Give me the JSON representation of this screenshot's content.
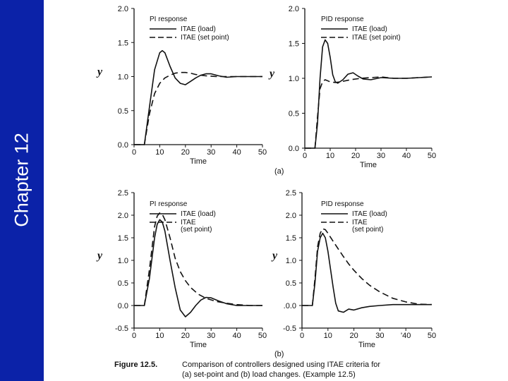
{
  "slide": {
    "chapter_title": "Chapter 12",
    "sidebar_color": "#0b22a8",
    "panel_a_label": "(a)",
    "panel_b_label": "(b)",
    "caption_figure": "Figure 12.5.",
    "caption_line1": "Comparison of controllers designed using ITAE criteria for",
    "caption_line2": "(a) set-point and (b) load changes. (Example 12.5)"
  },
  "chart_data": [
    {
      "type": "line",
      "title": "PI response",
      "xlabel": "Time",
      "ylabel": "y",
      "xlim": [
        0,
        50
      ],
      "ylim": [
        0,
        2.0
      ],
      "xticks": [
        0,
        10,
        20,
        30,
        40,
        50
      ],
      "yticks": [
        0.0,
        0.5,
        1.0,
        1.5,
        2.0
      ],
      "ytick_labels": [
        "0.0",
        "0.5",
        "1.0",
        "1.5",
        "2.0"
      ],
      "series": [
        {
          "name": "ITAE (load)",
          "style": "solid",
          "x": [
            0,
            4,
            6,
            8,
            10,
            11,
            12,
            14,
            16,
            18,
            20,
            22,
            24,
            26,
            28,
            30,
            33,
            36,
            40,
            45,
            50
          ],
          "y": [
            0,
            0,
            0.55,
            1.1,
            1.35,
            1.38,
            1.35,
            1.15,
            0.98,
            0.9,
            0.88,
            0.93,
            0.98,
            1.02,
            1.04,
            1.04,
            1.01,
            0.99,
            1.0,
            1.0,
            1.0
          ]
        },
        {
          "name": "ITAE (set point)",
          "style": "dashed",
          "x": [
            0,
            4,
            6,
            8,
            10,
            12,
            14,
            16,
            18,
            20,
            22,
            24,
            28,
            32,
            36,
            40,
            45,
            50
          ],
          "y": [
            0,
            0,
            0.45,
            0.75,
            0.9,
            0.98,
            1.02,
            1.05,
            1.06,
            1.06,
            1.05,
            1.03,
            1.01,
            1.0,
            1.0,
            1.0,
            1.0,
            1.0
          ]
        }
      ]
    },
    {
      "type": "line",
      "title": "PID response",
      "xlabel": "Time",
      "ylabel": "y",
      "xlim": [
        0,
        50
      ],
      "ylim": [
        0,
        2.0
      ],
      "xticks": [
        0,
        10,
        20,
        30,
        40,
        50
      ],
      "yticks": [
        0.0,
        0.5,
        1.0,
        1.5,
        2.0
      ],
      "ytick_labels": [
        "0.0",
        "0.5",
        "1.0",
        "1.5",
        "2.0"
      ],
      "series": [
        {
          "name": "ITAE (load)",
          "style": "solid",
          "x": [
            0,
            4,
            5,
            6,
            7,
            8,
            9,
            10,
            11,
            12,
            13,
            15,
            17,
            19,
            21,
            23,
            26,
            30,
            35,
            40,
            50
          ],
          "y": [
            0,
            0,
            0.35,
            1.0,
            1.45,
            1.55,
            1.5,
            1.3,
            1.05,
            0.95,
            0.93,
            0.98,
            1.06,
            1.08,
            1.03,
            0.99,
            0.98,
            1.01,
            1.0,
            1.0,
            1.02
          ]
        },
        {
          "name": "ITAE (set point)",
          "style": "dashed",
          "x": [
            0,
            4,
            5,
            6,
            7,
            8,
            10,
            12,
            14,
            18,
            22,
            26,
            30,
            35,
            40,
            50
          ],
          "y": [
            0,
            0,
            0.45,
            0.85,
            0.95,
            0.98,
            0.95,
            0.94,
            0.95,
            0.98,
            1.0,
            1.01,
            1.02,
            1.0,
            1.0,
            1.02
          ]
        }
      ]
    },
    {
      "type": "line",
      "title": "PI response",
      "xlabel": "Time",
      "ylabel": "y",
      "xlim": [
        0,
        50
      ],
      "ylim": [
        -0.5,
        2.5
      ],
      "xticks": [
        0,
        10,
        20,
        30,
        40,
        50
      ],
      "yticks": [
        -0.5,
        0.0,
        0.5,
        1.0,
        1.5,
        2.0,
        2.5
      ],
      "ytick_labels": [
        "-0.5",
        "0.0",
        "0.5",
        "1.0",
        "1.5",
        "2.0",
        "2.5"
      ],
      "series": [
        {
          "name": "ITAE (load)",
          "style": "solid",
          "x": [
            0,
            4,
            6,
            8,
            9,
            10,
            11,
            12,
            14,
            16,
            18,
            20,
            22,
            24,
            26,
            28,
            30,
            33,
            36,
            40,
            45,
            50
          ],
          "y": [
            0,
            0,
            0.6,
            1.5,
            1.8,
            1.9,
            1.85,
            1.65,
            1.0,
            0.4,
            -0.1,
            -0.25,
            -0.15,
            0.0,
            0.12,
            0.18,
            0.17,
            0.1,
            0.04,
            0.0,
            0.0,
            0.0
          ]
        },
        {
          "name": "ITAE\n(set point)",
          "style": "dashed",
          "x": [
            0,
            4,
            6,
            8,
            9,
            10,
            11,
            12,
            14,
            16,
            18,
            20,
            22,
            25,
            28,
            32,
            36,
            40,
            45,
            50
          ],
          "y": [
            0,
            0,
            0.8,
            1.75,
            1.98,
            2.05,
            2.02,
            1.9,
            1.5,
            1.05,
            0.75,
            0.55,
            0.4,
            0.25,
            0.16,
            0.09,
            0.05,
            0.02,
            0.0,
            0.0
          ]
        }
      ]
    },
    {
      "type": "line",
      "title": "PID response",
      "xlabel": "Time",
      "ylabel": "y",
      "xlim": [
        0,
        50
      ],
      "ylim": [
        -0.5,
        2.5
      ],
      "xticks": [
        0,
        10,
        20,
        30,
        40,
        50
      ],
      "xtick_labels": [
        "0",
        "10",
        "20",
        "30",
        "'40",
        "50"
      ],
      "yticks": [
        -0.5,
        0.0,
        0.5,
        1.0,
        1.5,
        2.0,
        2.5
      ],
      "ytick_labels": [
        "-0.5",
        ".0.0",
        "0.5",
        "1.0",
        "1.5",
        "2.0",
        "2.5"
      ],
      "series": [
        {
          "name": "ITAE (load)",
          "style": "solid",
          "x": [
            0,
            4,
            5,
            6,
            7,
            8,
            9,
            10,
            11,
            12,
            13,
            14,
            16,
            18,
            20,
            23,
            26,
            30,
            35,
            40,
            45,
            50
          ],
          "y": [
            0,
            0,
            0.5,
            1.2,
            1.5,
            1.6,
            1.5,
            1.2,
            0.8,
            0.4,
            0.05,
            -0.12,
            -0.15,
            -0.08,
            -0.1,
            -0.05,
            -0.02,
            0.0,
            0.02,
            0.02,
            0.02,
            0.02
          ]
        },
        {
          "name": "ITAE\n(set point)",
          "style": "dashed",
          "x": [
            0,
            4,
            5,
            6,
            7,
            8,
            9,
            10,
            12,
            14,
            16,
            18,
            20,
            23,
            26,
            30,
            35,
            40,
            45,
            50
          ],
          "y": [
            0,
            0,
            0.6,
            1.3,
            1.6,
            1.7,
            1.68,
            1.6,
            1.42,
            1.25,
            1.08,
            0.92,
            0.78,
            0.6,
            0.45,
            0.3,
            0.16,
            0.08,
            0.03,
            0.02
          ]
        }
      ]
    }
  ]
}
